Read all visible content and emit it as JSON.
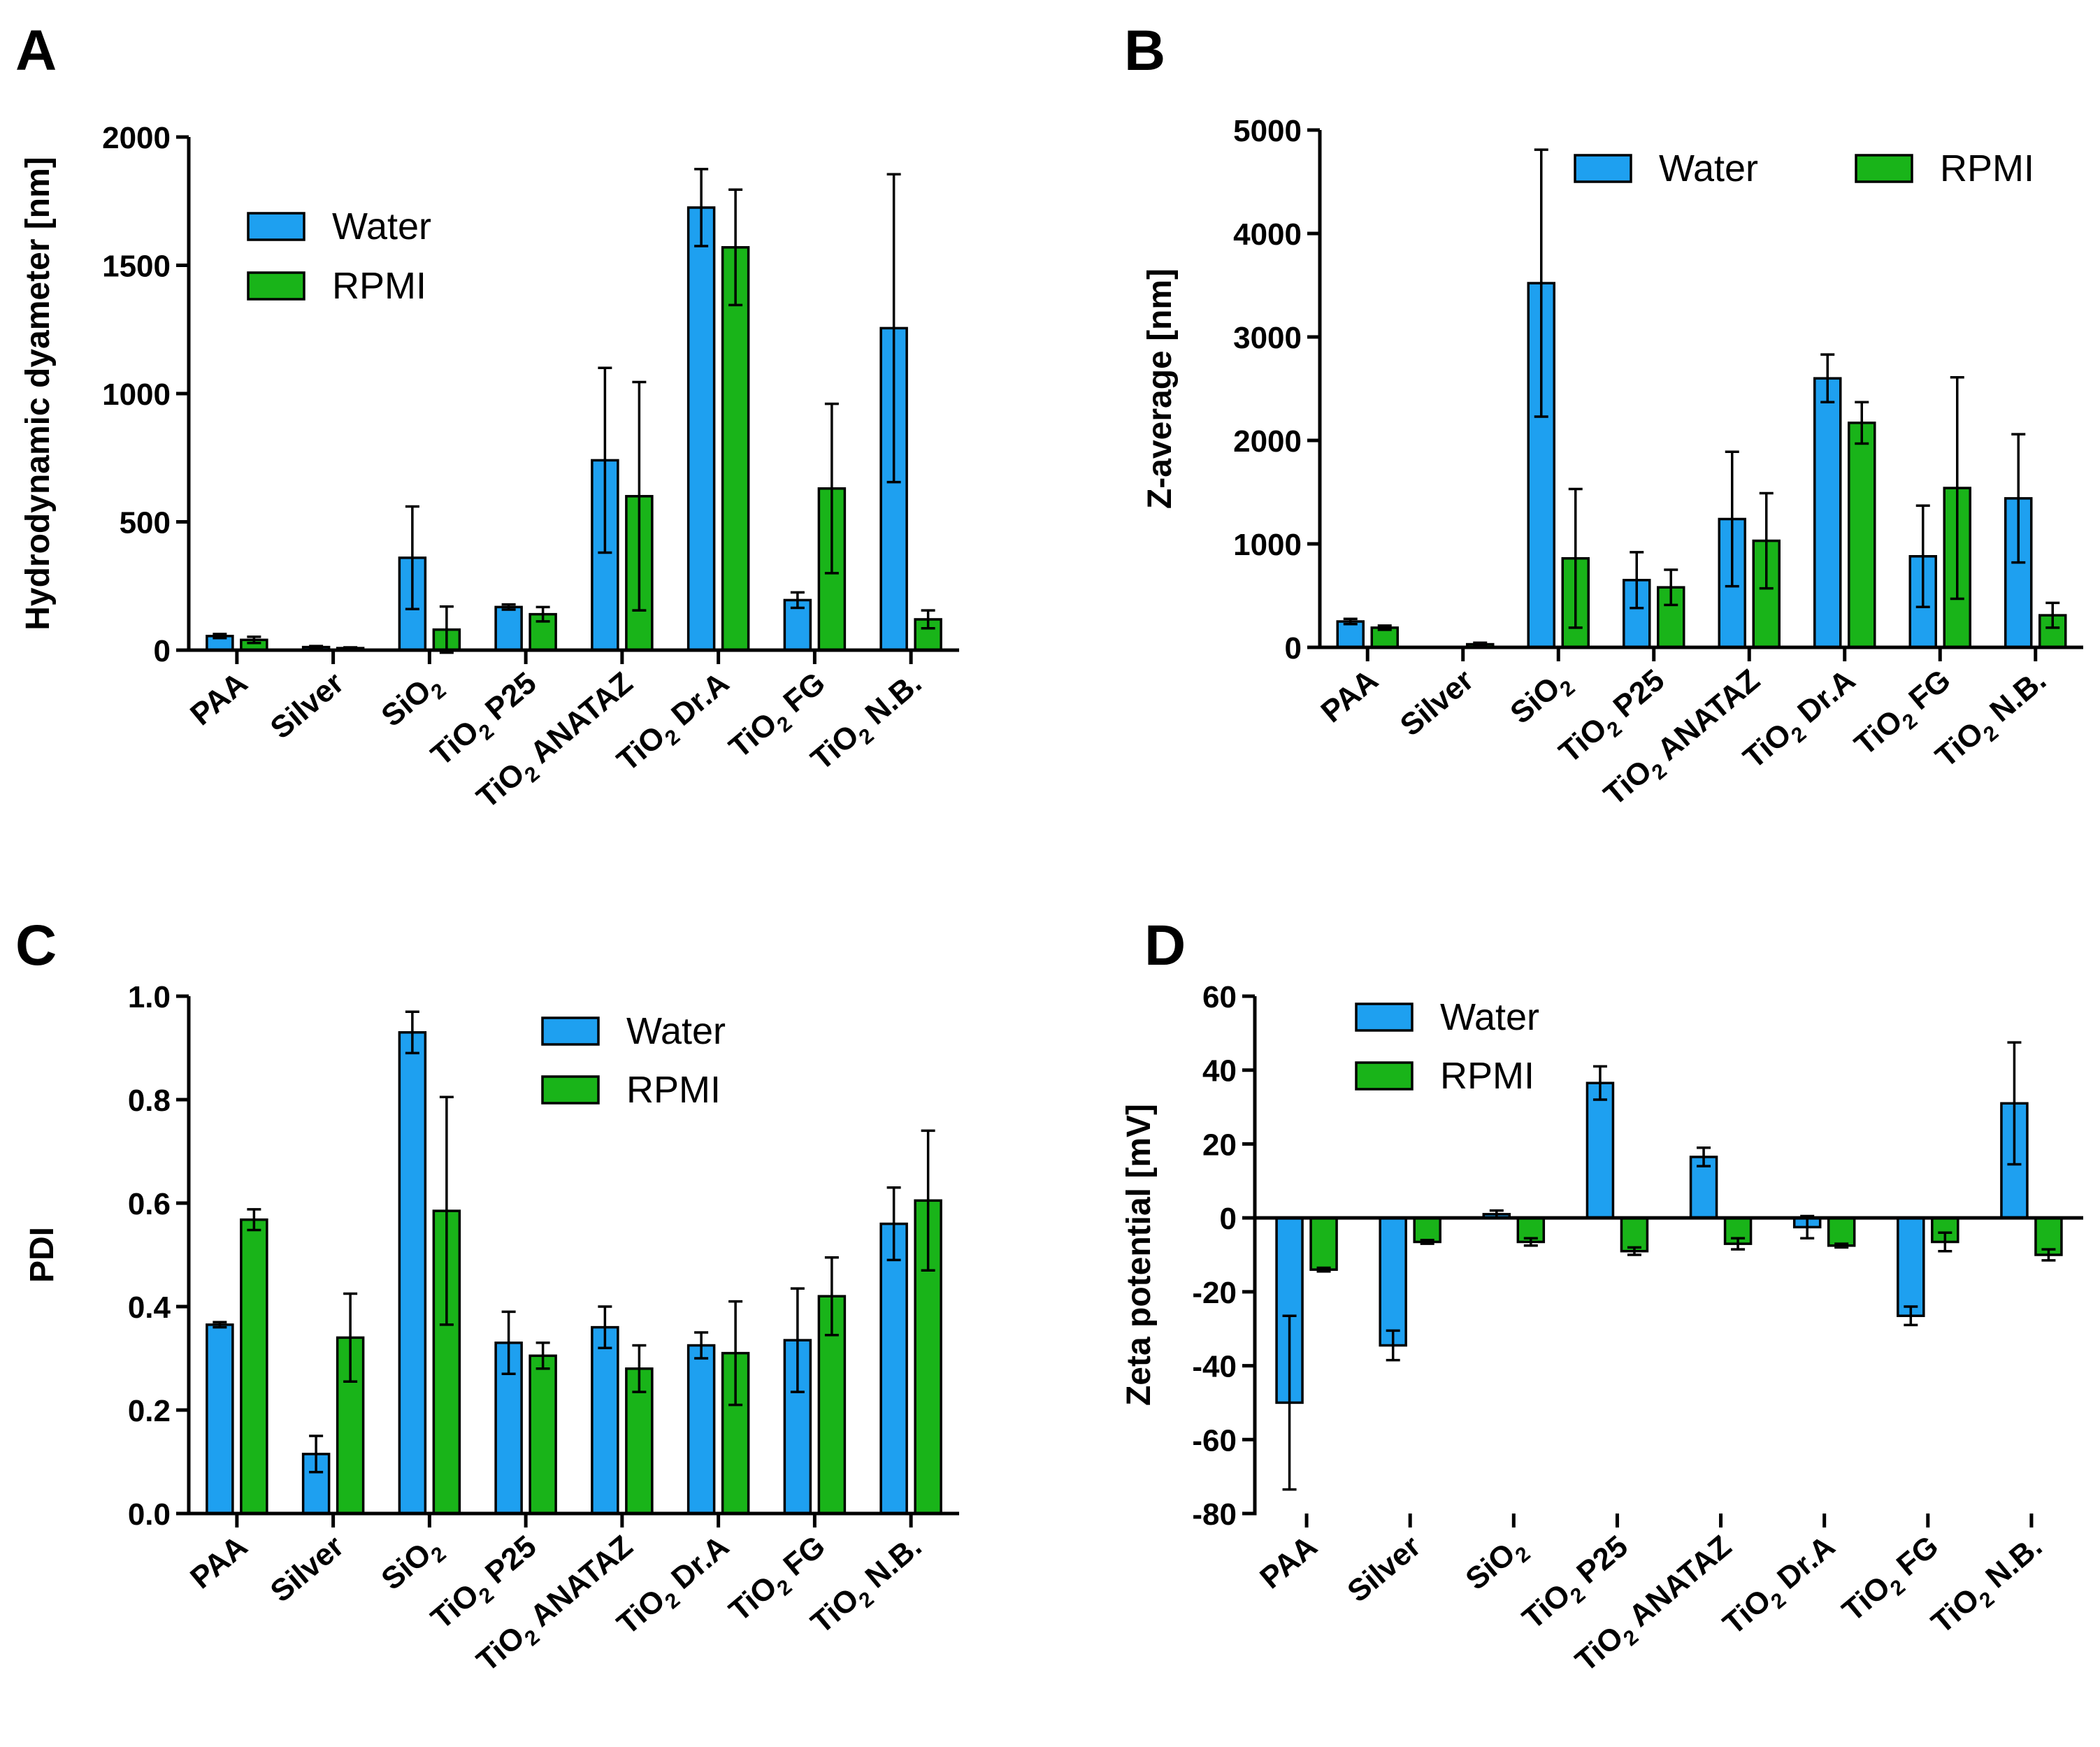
{
  "colors": {
    "water": "#1EA0F0",
    "rpmi": "#19B419"
  },
  "chart_data": [
    {
      "panel": "A",
      "type": "bar",
      "ylabel": "Hydrodynamic dyameter [nm]",
      "xlabel": "",
      "ylim": [
        0,
        2000
      ],
      "yticks": [
        "0",
        "500",
        "1000",
        "1500",
        "2000"
      ],
      "legend": "top-left",
      "categories": [
        {
          "main": "PAA"
        },
        {
          "main": "Silver"
        },
        {
          "main": "SiO",
          "sub": "2"
        },
        {
          "main": "TiO",
          "sub": "2",
          "rest": " P25"
        },
        {
          "main": "TiO",
          "sub": "2",
          "rest": " ANATAZ"
        },
        {
          "main": "TiO",
          "sub": "2",
          "rest": " Dr.A"
        },
        {
          "main": "TiO",
          "sub": "2",
          "rest": " FG"
        },
        {
          "main": "TiO",
          "sub": "2",
          "rest": " N.B."
        }
      ],
      "series": [
        {
          "name": "Water",
          "values": [
            55,
            12,
            360,
            168,
            740,
            1725,
            195,
            1255
          ],
          "err": [
            8,
            4,
            200,
            10,
            360,
            150,
            30,
            600
          ]
        },
        {
          "name": "RPMI",
          "values": [
            40,
            8,
            80,
            140,
            600,
            1570,
            630,
            120
          ],
          "err": [
            12,
            3,
            90,
            28,
            445,
            225,
            330,
            35
          ]
        }
      ]
    },
    {
      "panel": "B",
      "type": "bar",
      "ylabel": "Z-average [nm]",
      "xlabel": "",
      "ylim": [
        0,
        5000
      ],
      "yticks": [
        "0",
        "1000",
        "2000",
        "3000",
        "4000",
        "5000"
      ],
      "legend": "top-right",
      "categories": [
        {
          "main": "PAA"
        },
        {
          "main": "Silver"
        },
        {
          "main": "SiO",
          "sub": "2"
        },
        {
          "main": "TiO",
          "sub": "2",
          "rest": " P25"
        },
        {
          "main": "TiO",
          "sub": "2",
          "rest": " ANATAZ"
        },
        {
          "main": "TiO",
          "sub": "2",
          "rest": " Dr.A"
        },
        {
          "main": "TiO",
          "sub": "2",
          "rest": " FG"
        },
        {
          "main": "TiO",
          "sub": "2",
          "rest": " N.B."
        }
      ],
      "series": [
        {
          "name": "Water",
          "values": [
            250,
            0,
            3520,
            650,
            1240,
            2600,
            880,
            1440
          ],
          "err": [
            25,
            0,
            1290,
            270,
            650,
            230,
            490,
            620
          ]
        },
        {
          "name": "RPMI",
          "values": [
            190,
            30,
            860,
            580,
            1030,
            2170,
            1540,
            310
          ],
          "err": [
            20,
            15,
            670,
            170,
            460,
            200,
            1070,
            120
          ]
        }
      ]
    },
    {
      "panel": "C",
      "type": "bar",
      "ylabel": "PDI",
      "xlabel": "",
      "ylim": [
        0,
        1.0
      ],
      "yticks": [
        "0.0",
        "0.2",
        "0.4",
        "0.6",
        "0.8",
        "1.0"
      ],
      "legend": "top-center",
      "categories": [
        {
          "main": "PAA"
        },
        {
          "main": "Silver"
        },
        {
          "main": "SiO",
          "sub": "2"
        },
        {
          "main": "TiO",
          "sub": "2",
          "rest": " P25"
        },
        {
          "main": "TiO",
          "sub": "2",
          "rest": " ANATAZ"
        },
        {
          "main": "TiO",
          "sub": "2",
          "rest": " Dr.A"
        },
        {
          "main": "TiO",
          "sub": "2",
          "rest": " FG"
        },
        {
          "main": "TiO",
          "sub": "2",
          "rest": " N.B."
        }
      ],
      "series": [
        {
          "name": "Water",
          "values": [
            0.365,
            0.115,
            0.93,
            0.33,
            0.36,
            0.325,
            0.335,
            0.56
          ],
          "err": [
            0.005,
            0.035,
            0.04,
            0.06,
            0.04,
            0.025,
            0.1,
            0.07
          ]
        },
        {
          "name": "RPMI",
          "values": [
            0.568,
            0.34,
            0.585,
            0.305,
            0.28,
            0.31,
            0.42,
            0.605
          ],
          "err": [
            0.02,
            0.085,
            0.22,
            0.025,
            0.045,
            0.1,
            0.075,
            0.135
          ]
        }
      ]
    },
    {
      "panel": "D",
      "type": "bar",
      "ylabel": "Zeta potential [mV]",
      "xlabel": "",
      "ylim": [
        -80,
        60
      ],
      "yticks": [
        "-80",
        "-60",
        "-40",
        "-20",
        "0",
        "20",
        "40",
        "60"
      ],
      "legend": "top-left",
      "categories": [
        {
          "main": "PAA"
        },
        {
          "main": "Silver"
        },
        {
          "main": "SiO",
          "sub": "2"
        },
        {
          "main": "TiO",
          "sub": "2",
          "rest": " P25"
        },
        {
          "main": "TiO",
          "sub": "2",
          "rest": " ANATAZ"
        },
        {
          "main": "TiO",
          "sub": "2",
          "rest": " Dr.A"
        },
        {
          "main": "TiO",
          "sub": "2",
          "rest": " FG"
        },
        {
          "main": "TiO",
          "sub": "2",
          "rest": " N.B."
        }
      ],
      "series": [
        {
          "name": "Water",
          "values": [
            -50,
            -34.5,
            1,
            36.5,
            16.5,
            -2.5,
            -26.5,
            31
          ],
          "err": [
            23.5,
            4,
            1,
            4.5,
            2.5,
            3,
            2.5,
            16.5
          ]
        },
        {
          "name": "RPMI",
          "values": [
            -14,
            -6.5,
            -6.5,
            -9,
            -7,
            -7.5,
            -6.5,
            -10
          ],
          "err": [
            0.5,
            0.5,
            1,
            1,
            1.5,
            0.5,
            2.5,
            1.5
          ]
        }
      ]
    }
  ]
}
